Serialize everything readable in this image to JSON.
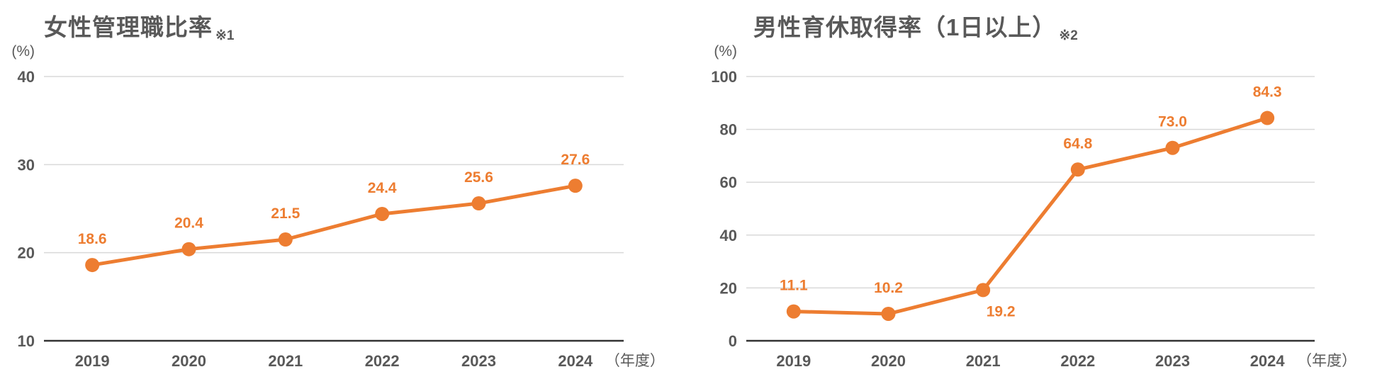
{
  "colors": {
    "accent": "#ED7D31",
    "text": "#595959",
    "gridline": "#D9D9D9",
    "axis": "#333333",
    "background": "#FFFFFF"
  },
  "chart_data": [
    {
      "type": "line",
      "title": "女性管理職比率",
      "title_note": "※1",
      "y_unit_label": "(%)",
      "x_unit_label": "（年度）",
      "categories": [
        "2019",
        "2020",
        "2021",
        "2022",
        "2023",
        "2024"
      ],
      "values": [
        18.6,
        20.4,
        21.5,
        24.4,
        25.6,
        27.6
      ],
      "data_labels": [
        "18.6",
        "20.4",
        "21.5",
        "24.4",
        "25.6",
        "27.6"
      ],
      "data_label_positions": [
        "above",
        "above",
        "above",
        "above",
        "above",
        "above"
      ],
      "ylim": [
        10,
        40
      ],
      "yticks": [
        10,
        20,
        30,
        40
      ],
      "grid": true,
      "legend": "none",
      "line_color": "#ED7D31"
    },
    {
      "type": "line",
      "title": "男性育休取得率（1日以上）",
      "title_note": "※2",
      "y_unit_label": "(%)",
      "x_unit_label": "（年度）",
      "categories": [
        "2019",
        "2020",
        "2021",
        "2022",
        "2023",
        "2024"
      ],
      "values": [
        11.1,
        10.2,
        19.2,
        64.8,
        73.0,
        84.3
      ],
      "data_labels": [
        "11.1",
        "10.2",
        "19.2",
        "64.8",
        "73.0",
        "84.3"
      ],
      "data_label_positions": [
        "above",
        "above",
        "below",
        "above",
        "above",
        "above"
      ],
      "ylim": [
        0,
        100
      ],
      "yticks": [
        0,
        20,
        40,
        60,
        80,
        100
      ],
      "grid": true,
      "legend": "none",
      "line_color": "#ED7D31"
    }
  ]
}
